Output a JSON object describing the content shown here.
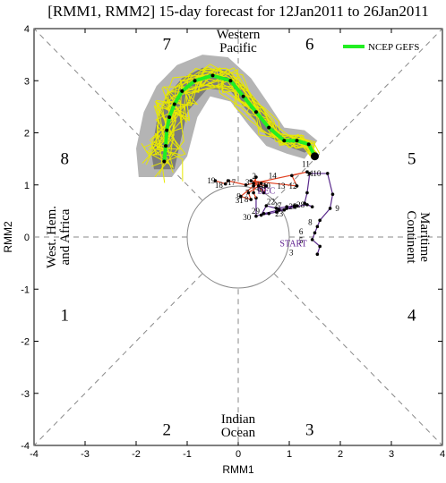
{
  "chart_data": {
    "type": "line",
    "title": "[RMM1, RMM2] 15-day forecast for 12Jan2011 to 26Jan2011",
    "xlabel": "RMM1",
    "ylabel": "RMM2",
    "xlim": [
      -4,
      4
    ],
    "ylim": [
      -4,
      4
    ],
    "xticks": [
      -4,
      -3,
      -2,
      -1,
      0,
      1,
      2,
      3,
      4
    ],
    "yticks": [
      -4,
      -3,
      -2,
      -1,
      0,
      1,
      2,
      3,
      4
    ],
    "phases": [
      {
        "label": "1",
        "x": -3.4,
        "y": -1.5
      },
      {
        "label": "2",
        "x": -1.4,
        "y": -3.7
      },
      {
        "label": "3",
        "x": 1.4,
        "y": -3.7
      },
      {
        "label": "4",
        "x": 3.4,
        "y": -1.5
      },
      {
        "label": "5",
        "x": 3.4,
        "y": 1.5
      },
      {
        "label": "6",
        "x": 1.4,
        "y": 3.7
      },
      {
        "label": "7",
        "x": -1.4,
        "y": 3.7
      },
      {
        "label": "8",
        "x": -3.4,
        "y": 1.5
      }
    ],
    "regions": [
      {
        "name": "western_pacific",
        "lines": [
          "Western",
          "Pacific"
        ]
      },
      {
        "name": "maritime_continent",
        "lines": [
          "Maritime",
          "Continent"
        ]
      },
      {
        "name": "indian_ocean",
        "lines": [
          "Indian",
          "Ocean"
        ]
      },
      {
        "name": "west_hem_africa",
        "lines": [
          "West. Hem.",
          "and Africa"
        ]
      }
    ],
    "legend": {
      "label": "NCEP GEFS",
      "color": "#22ee22",
      "position": "top-right"
    },
    "observed": {
      "start_label": "START",
      "month_label": "DEC",
      "dec_color": "#5a2a8c",
      "jan_color": "#e04020",
      "dec_points": [
        {
          "day": "3",
          "x": 1.55,
          "y": -0.33
        },
        {
          "day": "4",
          "x": 1.6,
          "y": -0.18
        },
        {
          "day": "5",
          "x": 1.45,
          "y": -0.05
        },
        {
          "day": "6",
          "x": 1.5,
          "y": 0.08
        },
        {
          "day": "7",
          "x": 1.55,
          "y": 0.2
        },
        {
          "day": "8",
          "x": 1.6,
          "y": 0.32
        },
        {
          "day": "9",
          "x": 1.8,
          "y": 0.55
        },
        {
          "day": "10",
          "x": 1.85,
          "y": 0.82
        },
        {
          "day": "11",
          "x": 1.75,
          "y": 1.22
        },
        {
          "day": "12",
          "x": 1.4,
          "y": 1.22
        },
        {
          "day": "13",
          "x": 1.35,
          "y": 0.85
        },
        {
          "day": "14",
          "x": 1.3,
          "y": 0.65
        },
        {
          "day": "15",
          "x": 1.45,
          "y": 0.58
        },
        {
          "day": "16",
          "x": 1.35,
          "y": 0.62
        },
        {
          "day": "17",
          "x": 1.1,
          "y": 0.58
        },
        {
          "day": "18",
          "x": 0.9,
          "y": 0.52
        },
        {
          "day": "19",
          "x": 0.75,
          "y": 0.48
        },
        {
          "day": "20",
          "x": 0.6,
          "y": 0.45
        },
        {
          "day": "21",
          "x": 0.45,
          "y": 0.42
        },
        {
          "day": "22",
          "x": 0.55,
          "y": 0.6
        },
        {
          "day": "23",
          "x": 0.75,
          "y": 0.55
        },
        {
          "day": "24",
          "x": 0.95,
          "y": 0.58
        },
        {
          "day": "25",
          "x": 1.1,
          "y": 0.6
        },
        {
          "day": "26",
          "x": 1.15,
          "y": 0.6
        },
        {
          "day": "27",
          "x": 0.95,
          "y": 0.55
        },
        {
          "day": "28",
          "x": 0.8,
          "y": 0.52
        },
        {
          "day": "29",
          "x": 0.5,
          "y": 0.45
        },
        {
          "day": "30",
          "x": 0.35,
          "y": 0.4
        },
        {
          "day": "31",
          "x": 0.35,
          "y": 0.75
        }
      ],
      "jan_points": [
        {
          "day": "1",
          "x": 0.3,
          "y": 0.85
        },
        {
          "day": "2",
          "x": 0.35,
          "y": 1.15
        },
        {
          "day": "3",
          "x": 0.3,
          "y": 1.03
        },
        {
          "day": "4",
          "x": 0.55,
          "y": 0.98
        },
        {
          "day": "5",
          "x": 0.5,
          "y": 0.85
        },
        {
          "day": "6",
          "x": 0.4,
          "y": 0.98
        },
        {
          "day": "7",
          "x": 0.2,
          "y": 0.85
        },
        {
          "day": "8",
          "x": 0.25,
          "y": 0.72
        },
        {
          "day": "9",
          "x": 0.05,
          "y": 0.78
        },
        {
          "day": "10",
          "x": 0.3,
          "y": 0.98
        },
        {
          "day": "11",
          "x": 0.45,
          "y": 1.03
        },
        {
          "day": "12",
          "x": 0.25,
          "y": 1.08
        },
        {
          "day": "13",
          "x": 1.15,
          "y": 0.98
        },
        {
          "day": "14",
          "x": 1.05,
          "y": 1.18
        },
        {
          "day": "15",
          "x": 1.35,
          "y": 1.25
        },
        {
          "day": "16",
          "x": 0.15,
          "y": 1.0
        },
        {
          "day": "17",
          "x": -0.2,
          "y": 1.08
        },
        {
          "day": "18",
          "x": -0.25,
          "y": 1.02
        },
        {
          "day": "19",
          "x": -0.45,
          "y": 1.08
        }
      ],
      "label_points": [
        {
          "text": "3",
          "x": 1.08,
          "y": -0.3
        },
        {
          "text": "6",
          "x": 1.27,
          "y": 0.1
        },
        {
          "text": "5",
          "x": 1.27,
          "y": -0.07
        },
        {
          "text": "8",
          "x": 1.45,
          "y": 0.28
        },
        {
          "text": "9",
          "x": 1.98,
          "y": 0.55
        },
        {
          "text": "11",
          "x": 1.48,
          "y": 1.22
        },
        {
          "text": "10",
          "x": 1.62,
          "y": 1.22
        },
        {
          "text": "12",
          "x": 1.15,
          "y": 0.98
        },
        {
          "text": "14",
          "x": 0.75,
          "y": 1.18
        },
        {
          "text": "13",
          "x": 0.92,
          "y": 0.98
        },
        {
          "text": "28",
          "x": 1.3,
          "y": 0.62
        },
        {
          "text": "25",
          "x": 1.15,
          "y": 0.58
        },
        {
          "text": "27",
          "x": 0.85,
          "y": 0.6
        },
        {
          "text": "22",
          "x": 0.72,
          "y": 0.68
        },
        {
          "text": "23",
          "x": 0.88,
          "y": 0.45
        },
        {
          "text": "29",
          "x": 0.42,
          "y": 0.5
        },
        {
          "text": "30",
          "x": 0.25,
          "y": 0.38
        },
        {
          "text": "31",
          "x": 0.1,
          "y": 0.7
        },
        {
          "text": "19",
          "x": -0.45,
          "y": 1.08
        },
        {
          "text": "18",
          "x": -0.3,
          "y": 1.0
        },
        {
          "text": "17",
          "x": -0.05,
          "y": 1.05
        },
        {
          "text": "2",
          "x": 0.35,
          "y": 1.17
        },
        {
          "text": "4",
          "x": 0.55,
          "y": 0.98
        },
        {
          "text": "3",
          "x": 0.22,
          "y": 1.05
        },
        {
          "text": "5",
          "x": 0.49,
          "y": 0.92
        },
        {
          "text": "6",
          "x": 0.45,
          "y": 0.92
        },
        {
          "text": "9",
          "x": 0.05,
          "y": 0.78
        },
        {
          "text": "7",
          "x": 0.22,
          "y": 0.85
        },
        {
          "text": "8",
          "x": 0.2,
          "y": 0.72
        },
        {
          "text": "10",
          "x": 0.63,
          "y": 0.98
        },
        {
          "text": "11",
          "x": 0.5,
          "y": 1.0
        }
      ]
    },
    "forecast_mean": [
      {
        "x": 1.5,
        "y": 1.55
      },
      {
        "x": 1.38,
        "y": 1.78
      },
      {
        "x": 1.15,
        "y": 1.85
      },
      {
        "x": 0.9,
        "y": 1.85
      },
      {
        "x": 0.6,
        "y": 2.1
      },
      {
        "x": 0.35,
        "y": 2.4
      },
      {
        "x": 0.1,
        "y": 2.7
      },
      {
        "x": -0.15,
        "y": 3.0
      },
      {
        "x": -0.5,
        "y": 3.1
      },
      {
        "x": -0.85,
        "y": 3.0
      },
      {
        "x": -1.1,
        "y": 2.8
      },
      {
        "x": -1.25,
        "y": 2.55
      },
      {
        "x": -1.35,
        "y": 2.3
      },
      {
        "x": -1.4,
        "y": 2.05
      },
      {
        "x": -1.42,
        "y": 1.75
      },
      {
        "x": -1.45,
        "y": 1.45
      }
    ],
    "spread_outer": {
      "upper": [
        {
          "x": 1.55,
          "y": 1.85
        },
        {
          "x": 1.3,
          "y": 2.05
        },
        {
          "x": 0.9,
          "y": 2.1
        },
        {
          "x": 0.6,
          "y": 2.55
        },
        {
          "x": 0.25,
          "y": 3.05
        },
        {
          "x": -0.2,
          "y": 3.45
        },
        {
          "x": -0.7,
          "y": 3.5
        },
        {
          "x": -1.2,
          "y": 3.3
        },
        {
          "x": -1.6,
          "y": 2.9
        },
        {
          "x": -1.85,
          "y": 2.4
        },
        {
          "x": -2.0,
          "y": 1.7
        },
        {
          "x": -1.95,
          "y": 1.15
        }
      ],
      "lower": [
        {
          "x": -1.3,
          "y": 1.15
        },
        {
          "x": -1.0,
          "y": 1.55
        },
        {
          "x": -0.8,
          "y": 2.3
        },
        {
          "x": -0.55,
          "y": 2.7
        },
        {
          "x": -0.15,
          "y": 2.6
        },
        {
          "x": 0.2,
          "y": 2.15
        },
        {
          "x": 0.55,
          "y": 1.75
        },
        {
          "x": 0.95,
          "y": 1.6
        },
        {
          "x": 1.3,
          "y": 1.5
        }
      ]
    },
    "spread_inner": {
      "upper": [
        {
          "x": 1.5,
          "y": 1.72
        },
        {
          "x": 1.25,
          "y": 1.92
        },
        {
          "x": 0.9,
          "y": 1.95
        },
        {
          "x": 0.6,
          "y": 2.3
        },
        {
          "x": 0.25,
          "y": 2.75
        },
        {
          "x": -0.2,
          "y": 3.2
        },
        {
          "x": -0.7,
          "y": 3.25
        },
        {
          "x": -1.1,
          "y": 3.05
        },
        {
          "x": -1.4,
          "y": 2.7
        },
        {
          "x": -1.6,
          "y": 2.2
        },
        {
          "x": -1.7,
          "y": 1.6
        },
        {
          "x": -1.65,
          "y": 1.3
        }
      ],
      "lower": [
        {
          "x": -1.25,
          "y": 1.3
        },
        {
          "x": -1.15,
          "y": 1.75
        },
        {
          "x": -1.0,
          "y": 2.4
        },
        {
          "x": -0.6,
          "y": 2.85
        },
        {
          "x": -0.15,
          "y": 2.8
        },
        {
          "x": 0.2,
          "y": 2.4
        },
        {
          "x": 0.55,
          "y": 1.95
        },
        {
          "x": 0.95,
          "y": 1.75
        },
        {
          "x": 1.3,
          "y": 1.62
        }
      ]
    },
    "members_color": "#e8e800",
    "members_count": 20,
    "spread_outer_color": "#b4b4b4",
    "spread_inner_color": "#7c7c7c",
    "forecast_start_marker": {
      "x": 1.5,
      "y": 1.55
    }
  }
}
